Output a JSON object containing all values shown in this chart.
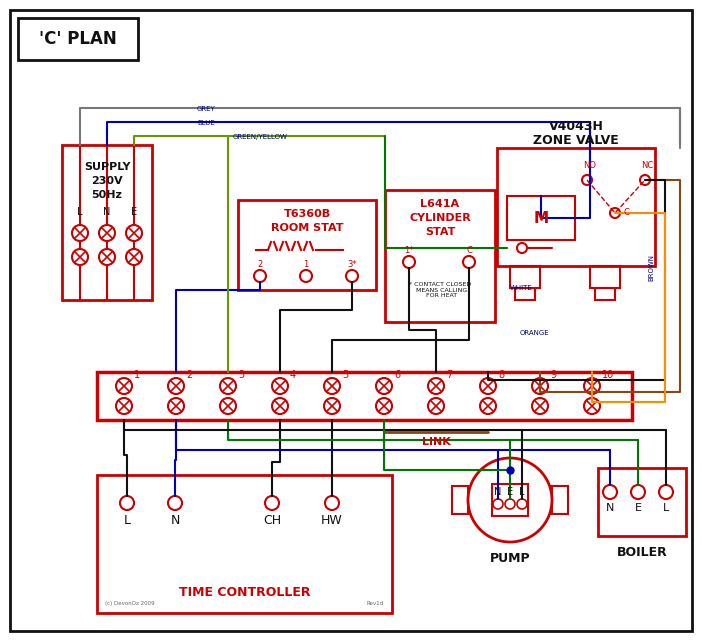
{
  "title": "'C' PLAN",
  "bg": "#ffffff",
  "red": "#cc0000",
  "blue": "#0000bb",
  "green": "#007700",
  "brown": "#8B4513",
  "grey": "#777777",
  "orange": "#FF8C00",
  "black": "#111111",
  "gy": "#669900",
  "navy": "#000080",
  "supply_lines": [
    "SUPPLY",
    "230V",
    "50Hz"
  ],
  "zone_title1": "V4043H",
  "zone_title2": "ZONE VALVE",
  "room_title1": "T6360B",
  "room_title2": "ROOM STAT",
  "cyl_title1": "L641A",
  "cyl_title2": "CYLINDER",
  "cyl_title3": "STAT",
  "tc_title": "TIME CONTROLLER",
  "tc_labels": [
    "L",
    "N",
    "CH",
    "HW"
  ],
  "pump_title": "PUMP",
  "boiler_title": "BOILER",
  "nel": [
    "N",
    "E",
    "L"
  ],
  "link": "LINK",
  "copyright": "(c) DevonOz 2009",
  "rev": "Rev1d",
  "cyl_note": "* CONTACT CLOSED\n  MEANS CALLING\n  FOR HEAT",
  "no_label": "NO",
  "nc_label": "NC",
  "c_label": "C",
  "m_label": "M",
  "grey_label": "GREY",
  "blue_label": "BLUE",
  "gy_label": "GREEN/YELLOW",
  "brown_label": "BROWN",
  "white_label": "WHITE",
  "orange_label": "ORANGE",
  "lne": [
    "L",
    "N",
    "E"
  ]
}
